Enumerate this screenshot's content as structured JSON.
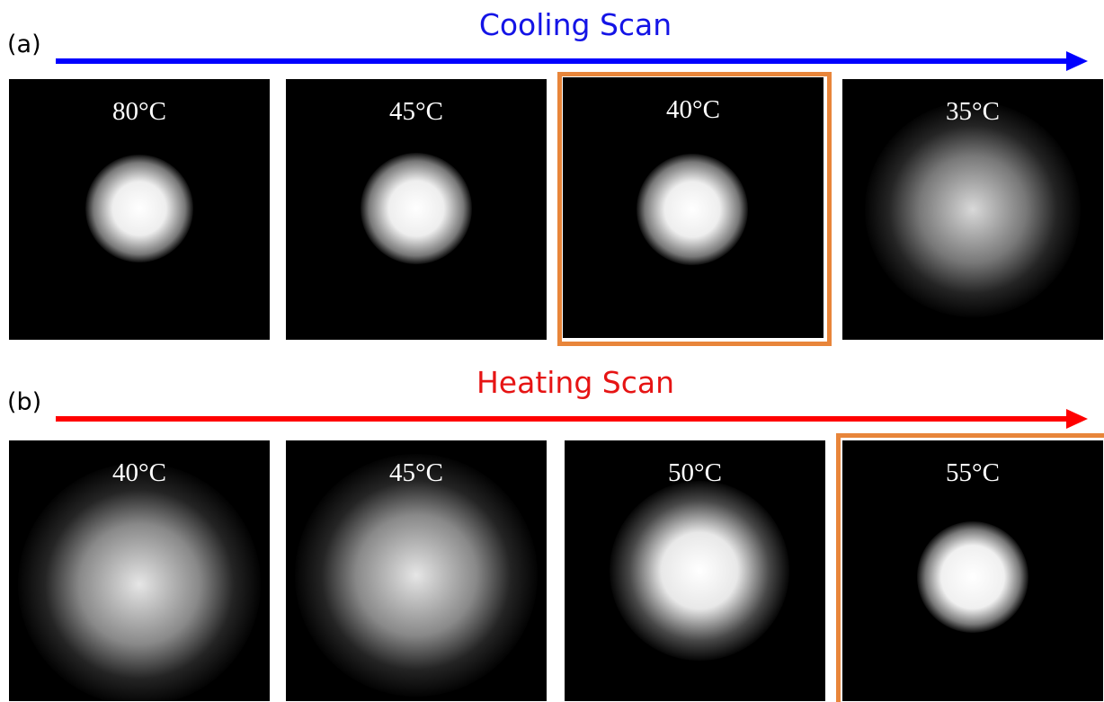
{
  "rows": [
    {
      "label": "(a)",
      "title": "Cooling Scan",
      "panels": [
        "80°C",
        "45°C",
        "40°C",
        "35°C"
      ]
    },
    {
      "label": "(b)",
      "title": "Heating Scan",
      "panels": [
        "40°C",
        "45°C",
        "50°C",
        "55°C"
      ]
    }
  ]
}
